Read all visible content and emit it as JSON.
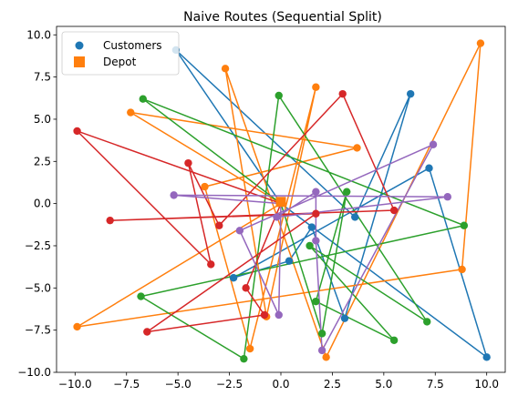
{
  "chart_data": {
    "type": "line",
    "title": "Naive Routes (Sequential Split)",
    "xlabel": "",
    "ylabel": "",
    "xlim": [
      -10.9,
      10.9
    ],
    "ylim": [
      -10.0,
      10.5
    ],
    "xticks": [
      -10.0,
      -7.5,
      -5.0,
      -2.5,
      0.0,
      2.5,
      5.0,
      7.5,
      10.0
    ],
    "yticks": [
      -10.0,
      -7.5,
      -5.0,
      -2.5,
      0.0,
      2.5,
      5.0,
      7.5,
      10.0
    ],
    "xtick_labels": [
      "−10.0",
      "−7.5",
      "−5.0",
      "−2.5",
      "0.0",
      "2.5",
      "5.0",
      "7.5",
      "10.0"
    ],
    "ytick_labels": [
      "−10.0",
      "−7.5",
      "−5.0",
      "−2.5",
      "0.0",
      "2.5",
      "5.0",
      "7.5",
      "10.0"
    ],
    "grid": false,
    "legend_position": "top-left",
    "legend": [
      "Customers",
      "Depot"
    ],
    "depot": {
      "x": 0.0,
      "y": 0.1,
      "color": "#ff7f0e"
    },
    "routes": [
      {
        "color": "#1f77b4",
        "points": [
          [
            0,
            0
          ],
          [
            -5.1,
            9.1
          ],
          [
            3.6,
            -0.8
          ],
          [
            6.3,
            6.5
          ],
          [
            3.1,
            -6.8
          ],
          [
            1.5,
            -1.4
          ],
          [
            0.4,
            -3.4
          ],
          [
            -2.3,
            -4.4
          ],
          [
            7.2,
            2.1
          ],
          [
            10.0,
            -9.1
          ],
          [
            0,
            0
          ]
        ]
      },
      {
        "color": "#ff7f0e",
        "points": [
          [
            0,
            0
          ],
          [
            -7.3,
            5.4
          ],
          [
            3.7,
            3.3
          ],
          [
            -3.7,
            1.0
          ],
          [
            -1.5,
            -8.6
          ],
          [
            1.7,
            6.9
          ],
          [
            -0.7,
            -6.7
          ],
          [
            -2.7,
            8.0
          ],
          [
            2.2,
            -9.1
          ],
          [
            9.7,
            9.5
          ],
          [
            8.8,
            -3.9
          ],
          [
            -9.9,
            -7.3
          ],
          [
            0,
            0
          ]
        ]
      },
      {
        "color": "#2ca02c",
        "points": [
          [
            0,
            0
          ],
          [
            -6.7,
            6.2
          ],
          [
            8.9,
            -1.3
          ],
          [
            -6.8,
            -5.5
          ],
          [
            -1.8,
            -9.2
          ],
          [
            -0.1,
            6.4
          ],
          [
            7.1,
            -7.0
          ],
          [
            1.4,
            -2.5
          ],
          [
            5.5,
            -8.1
          ],
          [
            1.7,
            -5.8
          ],
          [
            3.2,
            0.7
          ],
          [
            2.0,
            -7.7
          ],
          [
            0,
            0
          ]
        ]
      },
      {
        "color": "#d62728",
        "points": [
          [
            0,
            0
          ],
          [
            -9.9,
            4.3
          ],
          [
            -3.4,
            -3.6
          ],
          [
            -4.5,
            2.4
          ],
          [
            -3.0,
            -1.3
          ],
          [
            3.0,
            6.5
          ],
          [
            5.5,
            -0.4
          ],
          [
            -8.3,
            -1.0
          ],
          [
            1.7,
            -0.6
          ],
          [
            -6.5,
            -7.6
          ],
          [
            -0.8,
            -6.6
          ],
          [
            -1.7,
            -5.0
          ],
          [
            0,
            0
          ]
        ]
      },
      {
        "color": "#9467bd",
        "points": [
          [
            0,
            0
          ],
          [
            -5.2,
            0.5
          ],
          [
            8.1,
            0.4
          ],
          [
            -0.2,
            -0.8
          ],
          [
            1.7,
            0.7
          ],
          [
            1.7,
            -2.2
          ],
          [
            2.0,
            -8.7
          ],
          [
            7.4,
            3.5
          ],
          [
            -2.0,
            -1.6
          ],
          [
            -0.1,
            -6.6
          ],
          [
            0,
            0
          ]
        ]
      }
    ]
  }
}
